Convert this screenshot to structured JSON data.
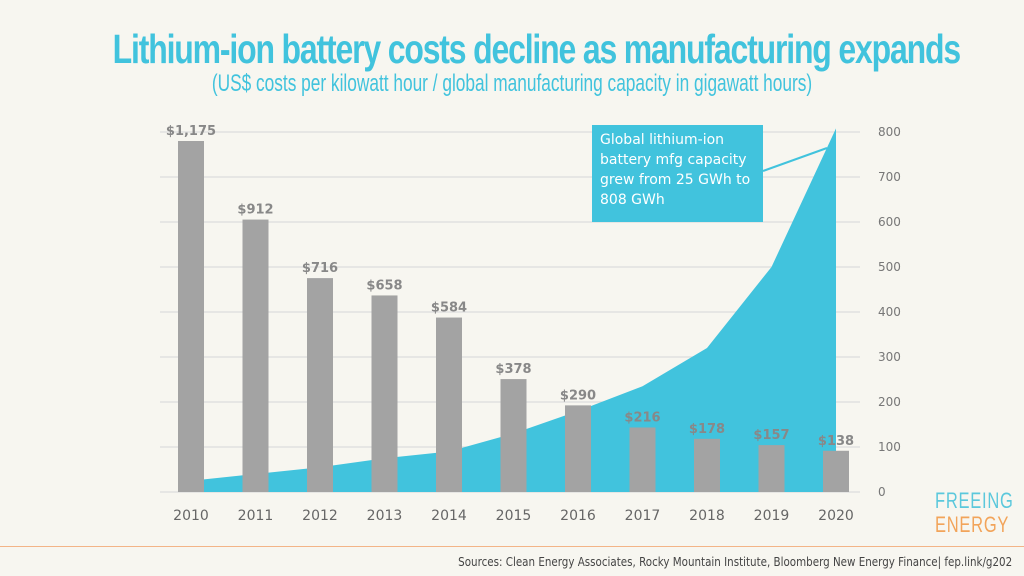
{
  "header": {
    "title": "Lithium-ion battery costs decline as manufacturing expands",
    "subtitle": "(US$ costs per kilowatt hour / global manufacturing capacity in gigawatt hours)"
  },
  "callout": {
    "text": "Global lithium-ion battery mfg capacity grew from 25 GWh to 808 GWh"
  },
  "logo": {
    "line1": "FREEING",
    "line2": "ENERGY"
  },
  "footer": {
    "sources": "Sources: Clean Energy Associates, Rocky Mountain Institute, Bloomberg New Energy Finance| fep.link/g202"
  },
  "colors": {
    "bar": "#a3a3a3",
    "area": "#41c3dd",
    "label": "#888888",
    "grid": "#dcdcdc",
    "accent_orange": "#f2a45a"
  },
  "chart_data": {
    "type": "bar+area",
    "title": "Lithium-ion battery costs decline as manufacturing expands",
    "subtitle": "(US$ costs per kilowatt hour / global manufacturing capacity in gigawatt hours)",
    "categories": [
      "2010",
      "2011",
      "2012",
      "2013",
      "2014",
      "2015",
      "2016",
      "2017",
      "2018",
      "2019",
      "2020"
    ],
    "series": [
      {
        "name": "Battery cost (US$/kWh)",
        "type": "bar",
        "axis": "left-hidden",
        "values": [
          1175,
          912,
          716,
          658,
          584,
          378,
          290,
          216,
          178,
          157,
          138
        ],
        "labels": [
          "$1,175",
          "$912",
          "$716",
          "$658",
          "$584",
          "$378",
          "$290",
          "$216",
          "$178",
          "$157",
          "$138"
        ]
      },
      {
        "name": "Global manufacturing capacity (GWh)",
        "type": "area",
        "axis": "right",
        "values": [
          25,
          40,
          55,
          75,
          90,
          130,
          180,
          235,
          320,
          500,
          808
        ]
      }
    ],
    "right_axis": {
      "ylim": [
        0,
        800
      ],
      "ticks": [
        "0",
        "100",
        "200",
        "300",
        "400",
        "500",
        "600",
        "700",
        "800"
      ]
    },
    "left_axis_range": [
      0,
      1175
    ],
    "grid": true,
    "legend": "none",
    "annotation": "Global lithium-ion battery mfg capacity grew from 25 GWh to 808 GWh"
  }
}
